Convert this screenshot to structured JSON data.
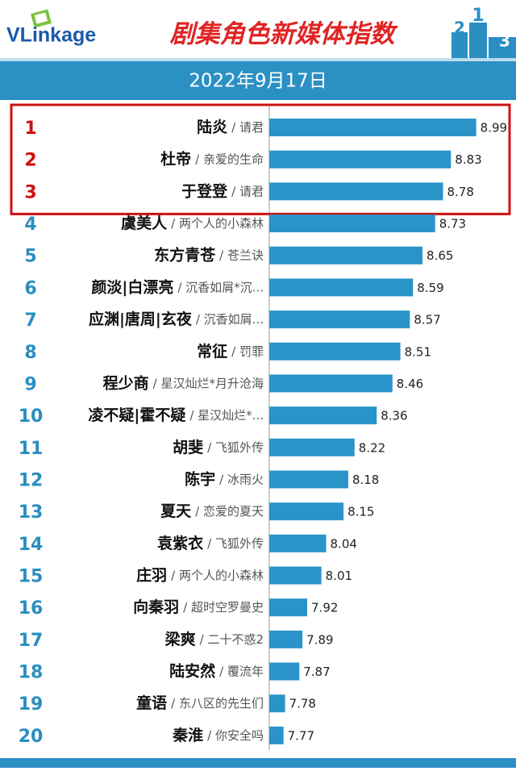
{
  "brand": "VLinkage",
  "podium": [
    "2",
    "1",
    "3"
  ],
  "chart_data": {
    "type": "bar",
    "title": "剧集角色新媒体指数",
    "subtitle": "2022年9月17日",
    "ranks": [
      "1",
      "2",
      "3",
      "4",
      "5",
      "6",
      "7",
      "8",
      "9",
      "10",
      "11",
      "12",
      "13",
      "14",
      "15",
      "16",
      "17",
      "18",
      "19",
      "20"
    ],
    "categories": [
      "陆炎",
      "杜帝",
      "于登登",
      "虞美人",
      "东方青苍",
      "颜淡|白漂亮",
      "应渊|唐周|玄夜",
      "常征",
      "程少商",
      "凌不疑|霍不疑",
      "胡斐",
      "陈宇",
      "夏天",
      "袁紫衣",
      "庄羽",
      "向秦羽",
      "梁爽",
      "陆安然",
      "童语",
      "秦淮"
    ],
    "dramas": [
      "/ 请君",
      "/ 亲爱的生命",
      "/ 请君",
      "/ 两个人的小森林",
      "/ 苍兰诀",
      "/ 沉香如屑*沉...",
      "/ 沉香如屑...",
      "/ 罚罪",
      "/ 星汉灿烂*月升沧海",
      "/ 星汉灿烂*...",
      "/ 飞狐外传",
      "/ 冰雨火",
      "/ 恋爱的夏天",
      "/ 飞狐外传",
      "/ 两个人的小森林",
      "/ 超时空罗曼史",
      "/ 二十不惑2",
      "/ 覆流年",
      "/ 东八区的先生们",
      "/ 你安全吗"
    ],
    "values": [
      8.99,
      8.83,
      8.78,
      8.73,
      8.65,
      8.59,
      8.57,
      8.51,
      8.46,
      8.36,
      8.22,
      8.18,
      8.15,
      8.04,
      8.01,
      7.92,
      7.89,
      7.87,
      7.78,
      7.77
    ],
    "xlim": [
      7.68,
      9.0
    ],
    "color": "#2a94c9",
    "highlight_top": 3,
    "highlight_color": "#cc1111",
    "rank_color": "#2a8ec0"
  }
}
